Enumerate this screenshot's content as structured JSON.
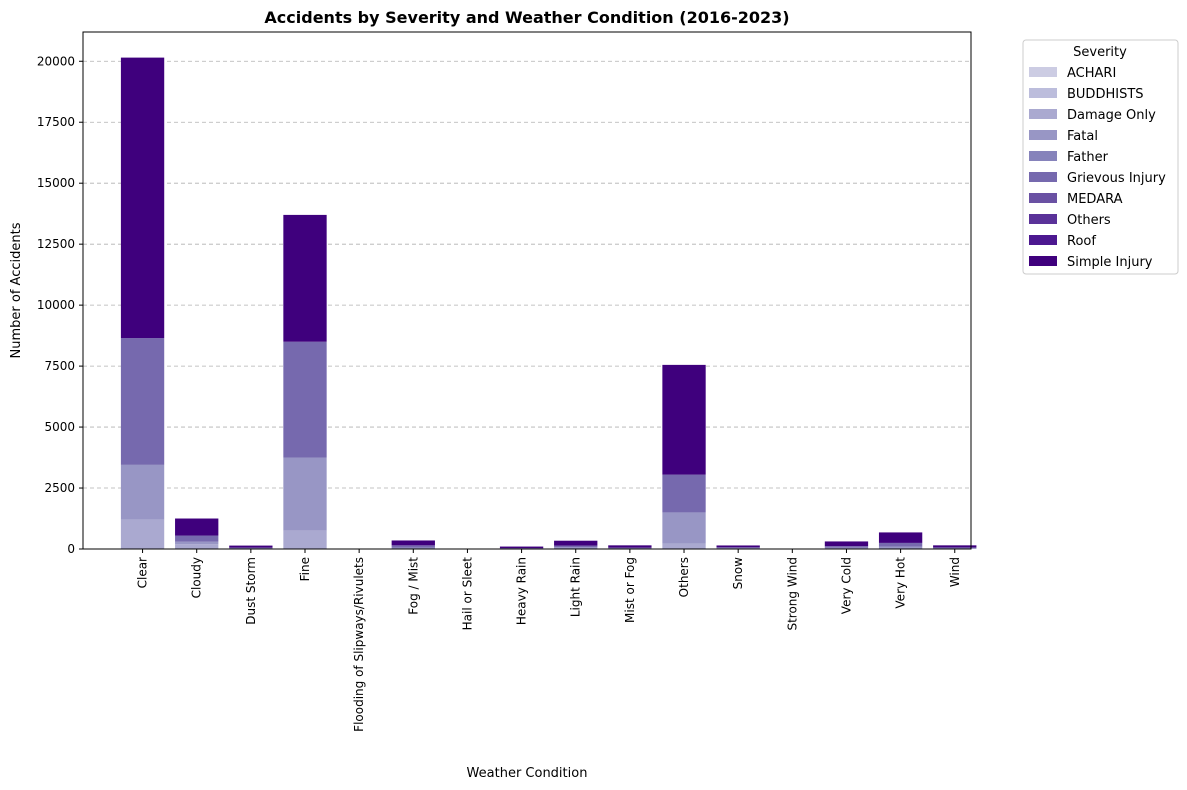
{
  "chart_data": {
    "type": "bar",
    "stacked": true,
    "title": "Accidents by Severity and Weather Condition (2016-2023)",
    "xlabel": "Weather Condition",
    "ylabel": "Number of Accidents",
    "ylim": [
      0,
      21200
    ],
    "yticks": [
      0,
      2500,
      5000,
      7500,
      10000,
      12500,
      15000,
      17500,
      20000
    ],
    "grid": "y-dashed",
    "legend": {
      "title": "Severity",
      "placement": "outside-top-right"
    },
    "categories": [
      "Clear",
      "Cloudy",
      "Dust Storm",
      "Fine",
      "Flooding of Slipways/Rivulets",
      "Fog / Mist",
      "Hail or Sleet",
      "Heavy Rain",
      "Light Rain",
      "Mist or Fog",
      "Others",
      "Snow",
      "Strong Wind",
      "Very Cold",
      "Very Hot",
      "Wind"
    ],
    "series": [
      {
        "name": "ACHARI",
        "color": "#cccce3",
        "values": [
          0,
          0,
          0,
          0,
          0,
          0,
          0,
          0,
          0,
          0,
          0,
          0,
          0,
          0,
          0,
          0
        ]
      },
      {
        "name": "BUDDHISTS",
        "color": "#bcbddc",
        "values": [
          0,
          0,
          0,
          0,
          0,
          0,
          0,
          0,
          0,
          0,
          0,
          0,
          0,
          0,
          0,
          0
        ]
      },
      {
        "name": "Damage Only",
        "color": "#aaa9d0",
        "values": [
          1200,
          200,
          10,
          750,
          0,
          20,
          0,
          5,
          20,
          10,
          220,
          10,
          0,
          20,
          20,
          10
        ]
      },
      {
        "name": "Fatal",
        "color": "#9896c5",
        "values": [
          2250,
          100,
          15,
          3000,
          0,
          40,
          0,
          10,
          50,
          15,
          1280,
          20,
          0,
          30,
          80,
          15
        ]
      },
      {
        "name": "Father",
        "color": "#8683bb",
        "values": [
          0,
          0,
          0,
          0,
          0,
          0,
          0,
          0,
          0,
          0,
          0,
          0,
          0,
          0,
          0,
          0
        ]
      },
      {
        "name": "Grievous Injury",
        "color": "#7669ae",
        "values": [
          5200,
          250,
          30,
          4750,
          0,
          90,
          0,
          20,
          70,
          30,
          1550,
          40,
          0,
          70,
          150,
          40
        ]
      },
      {
        "name": "MEDARA",
        "color": "#6a51a3",
        "values": [
          0,
          0,
          0,
          0,
          0,
          0,
          0,
          0,
          0,
          0,
          0,
          0,
          0,
          0,
          0,
          0
        ]
      },
      {
        "name": "Others",
        "color": "#5a3299",
        "values": [
          0,
          0,
          0,
          0,
          0,
          0,
          0,
          0,
          0,
          0,
          0,
          0,
          0,
          0,
          0,
          0
        ]
      },
      {
        "name": "Roof",
        "color": "#4c1890",
        "values": [
          0,
          0,
          0,
          0,
          0,
          0,
          0,
          0,
          0,
          0,
          0,
          0,
          0,
          0,
          0,
          0
        ]
      },
      {
        "name": "Simple Injury",
        "color": "#3f007d",
        "values": [
          11500,
          700,
          85,
          5200,
          0,
          200,
          0,
          65,
          200,
          95,
          4500,
          75,
          0,
          190,
          430,
          85
        ]
      }
    ]
  }
}
